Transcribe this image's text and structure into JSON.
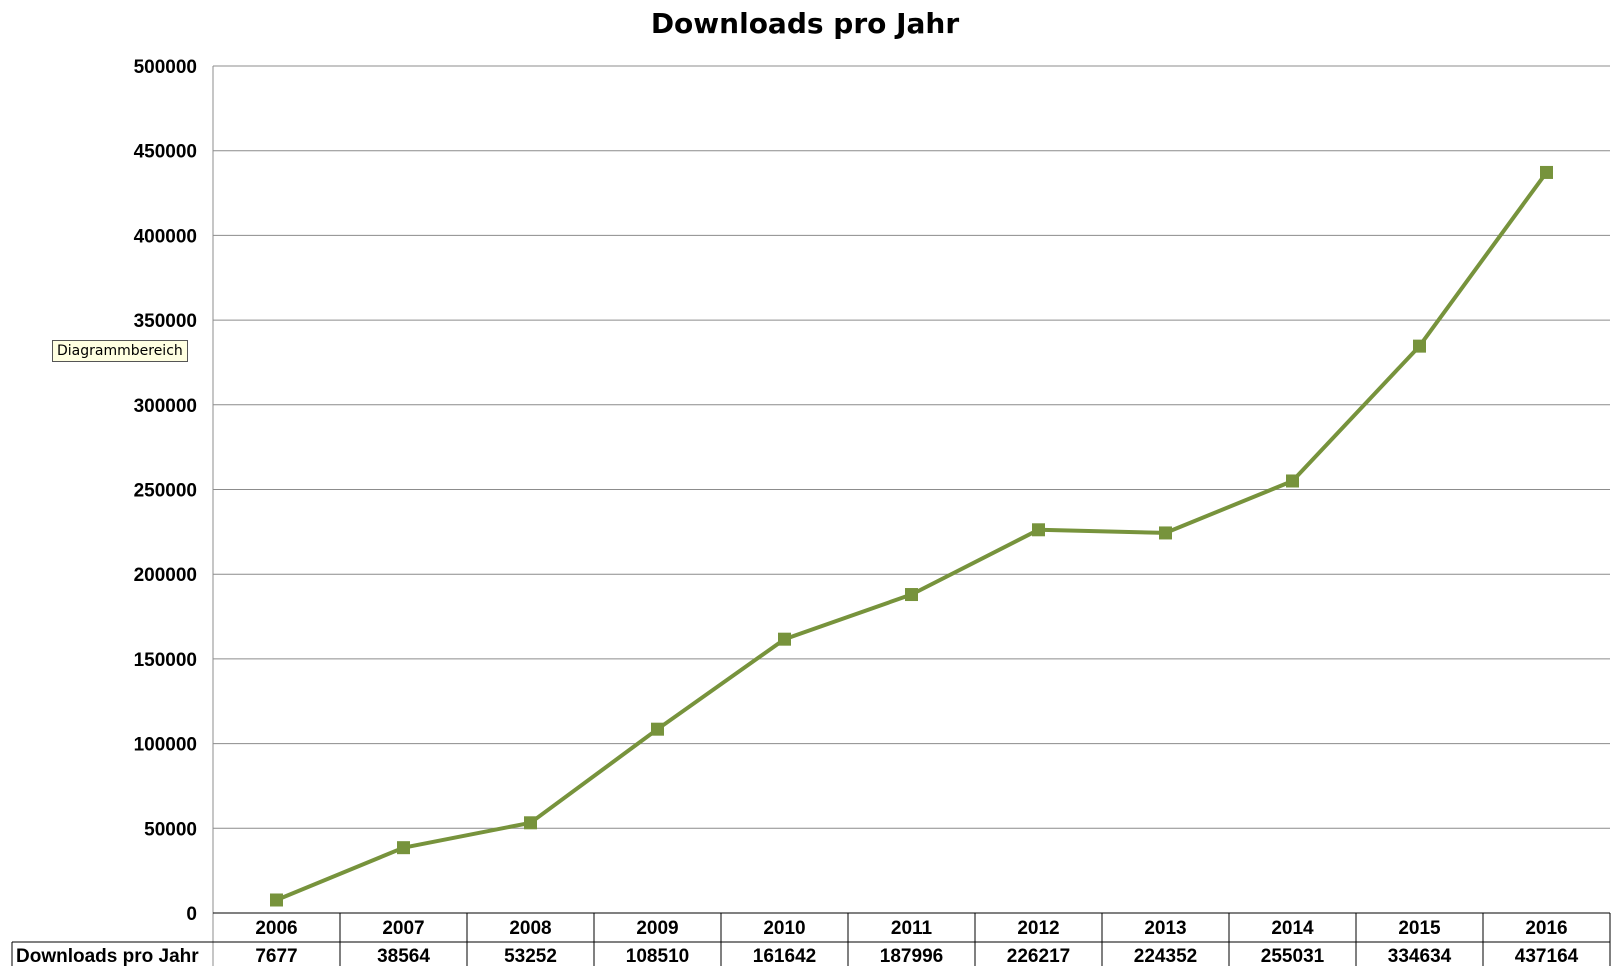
{
  "tooltip": {
    "text": "Diagrammbereich"
  },
  "chart_data": {
    "type": "line",
    "title": "Downloads pro Jahr",
    "xlabel": "",
    "ylabel": "",
    "ylim": [
      0,
      500000
    ],
    "yticks": [
      0,
      50000,
      100000,
      150000,
      200000,
      250000,
      300000,
      350000,
      400000,
      450000,
      500000
    ],
    "grid": true,
    "marker": "square",
    "data_table": true,
    "categories": [
      "2006",
      "2007",
      "2008",
      "2009",
      "2010",
      "2011",
      "2012",
      "2013",
      "2014",
      "2015",
      "2016"
    ],
    "series": [
      {
        "name": "Downloads pro Jahr",
        "color": "#77933c",
        "values": [
          7677,
          38564,
          53252,
          108510,
          161642,
          187996,
          226217,
          224352,
          255031,
          334634,
          437164
        ]
      }
    ]
  }
}
